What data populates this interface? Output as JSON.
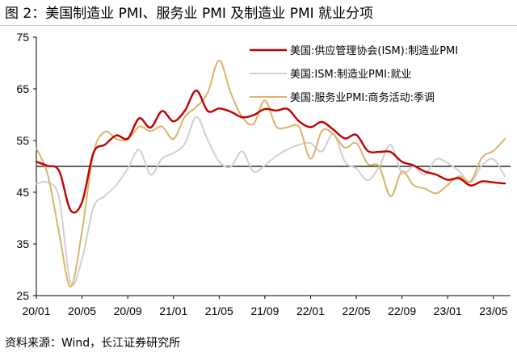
{
  "figure": {
    "title": "图 2：美国制造业 PMI、服务业 PMI 及制造业 PMI 就业分项",
    "source": "资料来源：Wind，长江证券研究所"
  },
  "chart_data": {
    "type": "line",
    "ylim": [
      25,
      75
    ],
    "yticks": [
      25,
      35,
      45,
      55,
      65,
      75
    ],
    "xticks": [
      "20/01",
      "20/05",
      "20/09",
      "21/01",
      "21/05",
      "21/09",
      "22/01",
      "22/05",
      "22/09",
      "23/01",
      "23/05"
    ],
    "x_range": [
      "2020-01",
      "2023-06"
    ],
    "reference_line": 50,
    "legend_position": "top-right",
    "series": [
      {
        "name": "美国:供应管理协会(ISM):制造业PMI",
        "color": "#c00000",
        "points": [
          [
            "2020-01",
            50.9
          ],
          [
            "2020-02",
            50.1
          ],
          [
            "2020-03",
            49.1
          ],
          [
            "2020-04",
            41.5
          ],
          [
            "2020-05",
            43.1
          ],
          [
            "2020-06",
            52.6
          ],
          [
            "2020-07",
            54.2
          ],
          [
            "2020-08",
            56.0
          ],
          [
            "2020-09",
            55.4
          ],
          [
            "2020-10",
            59.3
          ],
          [
            "2020-11",
            57.5
          ],
          [
            "2020-12",
            60.7
          ],
          [
            "2021-01",
            58.7
          ],
          [
            "2021-02",
            60.8
          ],
          [
            "2021-03",
            64.7
          ],
          [
            "2021-04",
            60.7
          ],
          [
            "2021-05",
            61.2
          ],
          [
            "2021-06",
            60.6
          ],
          [
            "2021-07",
            59.5
          ],
          [
            "2021-08",
            59.9
          ],
          [
            "2021-09",
            61.1
          ],
          [
            "2021-10",
            60.8
          ],
          [
            "2021-11",
            61.1
          ],
          [
            "2021-12",
            58.7
          ],
          [
            "2022-01",
            57.6
          ],
          [
            "2022-02",
            58.6
          ],
          [
            "2022-03",
            57.1
          ],
          [
            "2022-04",
            55.4
          ],
          [
            "2022-05",
            56.1
          ],
          [
            "2022-06",
            53.0
          ],
          [
            "2022-07",
            52.8
          ],
          [
            "2022-08",
            52.8
          ],
          [
            "2022-09",
            50.9
          ],
          [
            "2022-10",
            50.2
          ],
          [
            "2022-11",
            49.0
          ],
          [
            "2022-12",
            48.4
          ],
          [
            "2023-01",
            47.4
          ],
          [
            "2023-02",
            47.7
          ],
          [
            "2023-03",
            46.3
          ],
          [
            "2023-04",
            47.1
          ],
          [
            "2023-05",
            46.9
          ],
          [
            "2023-06",
            46.7
          ]
        ]
      },
      {
        "name": "美国:ISM:制造业PMI:就业",
        "color": "#d0d0d0",
        "points": [
          [
            "2020-01",
            46.6
          ],
          [
            "2020-02",
            46.9
          ],
          [
            "2020-03",
            43.8
          ],
          [
            "2020-04",
            27.5
          ],
          [
            "2020-05",
            32.1
          ],
          [
            "2020-06",
            42.1
          ],
          [
            "2020-07",
            44.3
          ],
          [
            "2020-08",
            46.4
          ],
          [
            "2020-09",
            49.6
          ],
          [
            "2020-10",
            53.2
          ],
          [
            "2020-11",
            48.4
          ],
          [
            "2020-12",
            51.5
          ],
          [
            "2021-01",
            52.6
          ],
          [
            "2021-02",
            54.4
          ],
          [
            "2021-03",
            59.6
          ],
          [
            "2021-04",
            55.1
          ],
          [
            "2021-05",
            50.9
          ],
          [
            "2021-06",
            49.9
          ],
          [
            "2021-07",
            52.9
          ],
          [
            "2021-08",
            49.0
          ],
          [
            "2021-09",
            50.2
          ],
          [
            "2021-10",
            52.0
          ],
          [
            "2021-11",
            53.3
          ],
          [
            "2021-12",
            54.2
          ],
          [
            "2022-01",
            54.5
          ],
          [
            "2022-02",
            52.9
          ],
          [
            "2022-03",
            56.3
          ],
          [
            "2022-04",
            50.9
          ],
          [
            "2022-05",
            49.6
          ],
          [
            "2022-06",
            47.3
          ],
          [
            "2022-07",
            49.9
          ],
          [
            "2022-08",
            54.2
          ],
          [
            "2022-09",
            48.7
          ],
          [
            "2022-10",
            50.0
          ],
          [
            "2022-11",
            48.4
          ],
          [
            "2022-12",
            51.4
          ],
          [
            "2023-01",
            50.6
          ],
          [
            "2023-02",
            49.1
          ],
          [
            "2023-03",
            46.9
          ],
          [
            "2023-04",
            50.2
          ],
          [
            "2023-05",
            51.4
          ],
          [
            "2023-06",
            48.1
          ]
        ]
      },
      {
        "name": "美国:服务业PMI:商务活动:季调",
        "color": "#d9b46a",
        "points": [
          [
            "2020-01",
            53.5
          ],
          [
            "2020-02",
            48.4
          ],
          [
            "2020-03",
            37.0
          ],
          [
            "2020-04",
            26.7
          ],
          [
            "2020-05",
            37.5
          ],
          [
            "2020-06",
            52.6
          ],
          [
            "2020-07",
            56.7
          ],
          [
            "2020-08",
            55.3
          ],
          [
            "2020-09",
            55.2
          ],
          [
            "2020-10",
            57.7
          ],
          [
            "2020-11",
            56.8
          ],
          [
            "2020-12",
            57.7
          ],
          [
            "2021-01",
            55.3
          ],
          [
            "2021-02",
            59.6
          ],
          [
            "2021-03",
            61.5
          ],
          [
            "2021-04",
            64.3
          ],
          [
            "2021-05",
            70.5
          ],
          [
            "2021-06",
            64.3
          ],
          [
            "2021-07",
            59.6
          ],
          [
            "2021-08",
            58.2
          ],
          [
            "2021-09",
            62.8
          ],
          [
            "2021-10",
            57.7
          ],
          [
            "2021-11",
            57.6
          ],
          [
            "2021-12",
            57.6
          ],
          [
            "2022-01",
            51.5
          ],
          [
            "2022-02",
            56.9
          ],
          [
            "2022-03",
            56.2
          ],
          [
            "2022-04",
            53.6
          ],
          [
            "2022-05",
            54.5
          ],
          [
            "2022-06",
            50.5
          ],
          [
            "2022-07",
            50.0
          ],
          [
            "2022-08",
            44.2
          ],
          [
            "2022-09",
            49.0
          ],
          [
            "2022-10",
            46.4
          ],
          [
            "2022-11",
            45.7
          ],
          [
            "2022-12",
            44.8
          ],
          [
            "2023-01",
            46.4
          ],
          [
            "2023-02",
            48.1
          ],
          [
            "2023-03",
            47.1
          ],
          [
            "2023-04",
            51.7
          ],
          [
            "2023-05",
            53.0
          ],
          [
            "2023-06",
            55.3
          ]
        ]
      }
    ]
  }
}
